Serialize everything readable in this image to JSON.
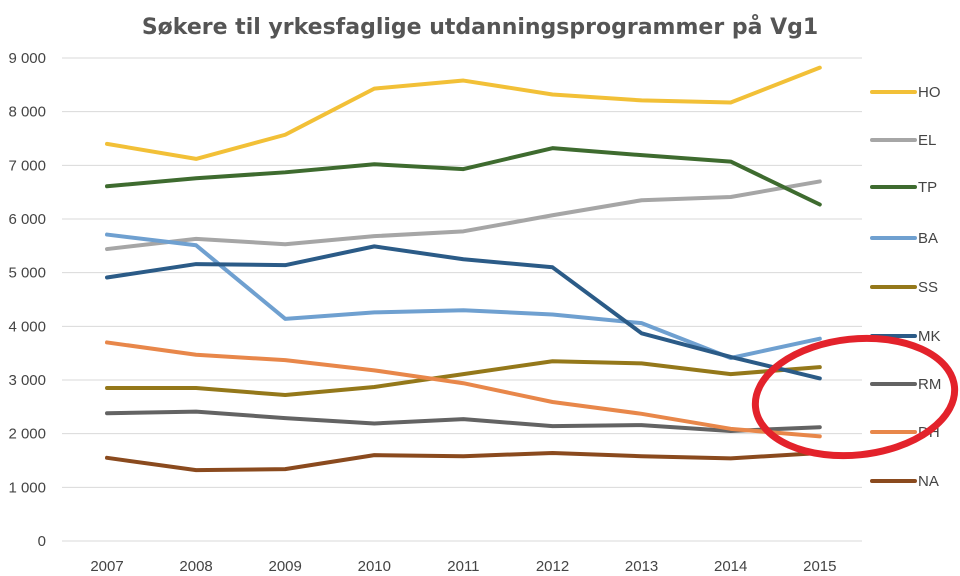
{
  "chart_data": {
    "type": "line",
    "title": "Søkere til yrkesfaglige utdanningsprogrammer på Vg1",
    "xlabel": "",
    "ylabel": "",
    "ylim": [
      0,
      9000
    ],
    "grid": true,
    "legend_position": "right",
    "y_ticks": [
      "0",
      "1 000",
      "2 000",
      "3 000",
      "4 000",
      "5 000",
      "6 000",
      "7 000",
      "8 000",
      "9 000"
    ],
    "categories": [
      "2007",
      "2008",
      "2009",
      "2010",
      "2011",
      "2012",
      "2013",
      "2014",
      "2015"
    ],
    "series": [
      {
        "name": "HO",
        "color": "#f2c037",
        "values": [
          7400,
          7120,
          7570,
          8430,
          8580,
          8320,
          8210,
          8170,
          8820
        ]
      },
      {
        "name": "EL",
        "color": "#a6a6a6",
        "values": [
          5440,
          5630,
          5530,
          5680,
          5770,
          6070,
          6350,
          6410,
          6700
        ]
      },
      {
        "name": "TP",
        "color": "#3e6b2f",
        "values": [
          6610,
          6760,
          6870,
          7020,
          6930,
          7320,
          7190,
          7070,
          6270
        ]
      },
      {
        "name": "BA",
        "color": "#6fa0d0",
        "values": [
          5710,
          5510,
          4140,
          4260,
          4300,
          4220,
          4060,
          3410,
          3770
        ]
      },
      {
        "name": "SS",
        "color": "#94781a",
        "values": [
          2850,
          2850,
          2720,
          2870,
          3110,
          3350,
          3310,
          3110,
          3240
        ]
      },
      {
        "name": "MK",
        "color": "#2b5b87",
        "values": [
          4910,
          5160,
          5140,
          5490,
          5250,
          5100,
          3870,
          3430,
          3030
        ]
      },
      {
        "name": "RM",
        "color": "#636363",
        "values": [
          2380,
          2410,
          2290,
          2190,
          2270,
          2140,
          2160,
          2050,
          2120
        ]
      },
      {
        "name": "DH",
        "color": "#e8874a",
        "values": [
          3700,
          3470,
          3370,
          3180,
          2940,
          2590,
          2370,
          2090,
          1950
        ]
      },
      {
        "name": "NA",
        "color": "#8a4a1e",
        "values": [
          1550,
          1320,
          1340,
          1600,
          1580,
          1640,
          1580,
          1540,
          1640
        ]
      }
    ],
    "annotation": {
      "shape": "ellipse",
      "color": "#e3222b"
    }
  }
}
